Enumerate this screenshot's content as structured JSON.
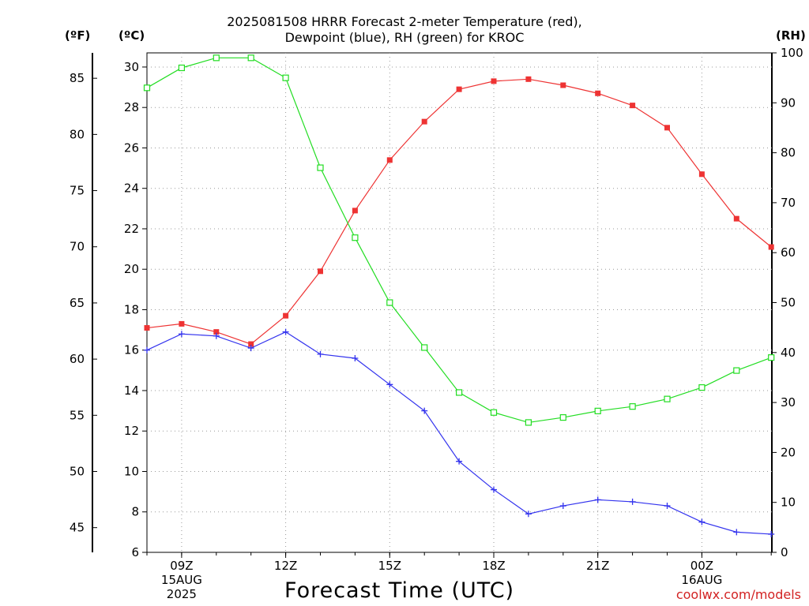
{
  "title_line1": "2025081508 HRRR Forecast 2-meter Temperature (red),",
  "title_line2": "Dewpoint (blue), RH (green) for KROC",
  "units": {
    "fahrenheit": "(ºF)",
    "celsius": "(ºC)",
    "rh": "(RH)"
  },
  "xlabel": "Forecast Time (UTC)",
  "credit": "coolwx.com/models",
  "chart_data": {
    "type": "line",
    "x": [
      "08Z",
      "09Z",
      "10Z",
      "11Z",
      "12Z",
      "13Z",
      "14Z",
      "15Z",
      "16Z",
      "17Z",
      "18Z",
      "19Z",
      "20Z",
      "21Z",
      "22Z",
      "23Z",
      "00Z",
      "01Z",
      "02Z"
    ],
    "x_ticks": [
      {
        "label": "09Z",
        "sub": [
          "15AUG",
          "2025"
        ]
      },
      {
        "label": "12Z",
        "sub": []
      },
      {
        "label": "15Z",
        "sub": []
      },
      {
        "label": "18Z",
        "sub": []
      },
      {
        "label": "21Z",
        "sub": []
      },
      {
        "label": "00Z",
        "sub": [
          "16AUG"
        ]
      }
    ],
    "y_celsius": {
      "range": [
        6,
        30.7
      ],
      "ticks": [
        "6",
        "8",
        "10",
        "12",
        "14",
        "16",
        "18",
        "20",
        "22",
        "24",
        "26",
        "28",
        "30"
      ]
    },
    "y_fahrenheit": {
      "ticks": [
        "45",
        "50",
        "55",
        "60",
        "65",
        "70",
        "75",
        "80",
        "85"
      ]
    },
    "y_rh": {
      "range": [
        0,
        100
      ],
      "ticks": [
        "0",
        "10",
        "20",
        "30",
        "40",
        "50",
        "60",
        "70",
        "80",
        "90",
        "100"
      ]
    },
    "grid": true,
    "series": [
      {
        "name": "Temperature",
        "axis": "celsius",
        "color": "#ee3333",
        "marker": "filled-square",
        "values": [
          17.1,
          17.3,
          16.9,
          16.3,
          17.7,
          19.9,
          22.9,
          25.4,
          27.3,
          28.9,
          29.3,
          29.4,
          29.1,
          28.7,
          28.1,
          27.0,
          24.7,
          22.5,
          21.1
        ]
      },
      {
        "name": "Dewpoint",
        "axis": "celsius",
        "color": "#3333ee",
        "marker": "plus",
        "values": [
          16.0,
          16.8,
          16.7,
          16.1,
          16.9,
          15.8,
          15.6,
          14.3,
          13.0,
          10.5,
          9.1,
          7.9,
          8.3,
          8.6,
          8.5,
          8.3,
          7.5,
          7.0,
          6.9
        ]
      },
      {
        "name": "RH",
        "axis": "rh",
        "color": "#22dd22",
        "marker": "open-square",
        "values": [
          93,
          97,
          99,
          99,
          95,
          77,
          63,
          50,
          41,
          32,
          28,
          26,
          27,
          28.3,
          29.2,
          30.7,
          33,
          36.4,
          39
        ]
      }
    ]
  }
}
